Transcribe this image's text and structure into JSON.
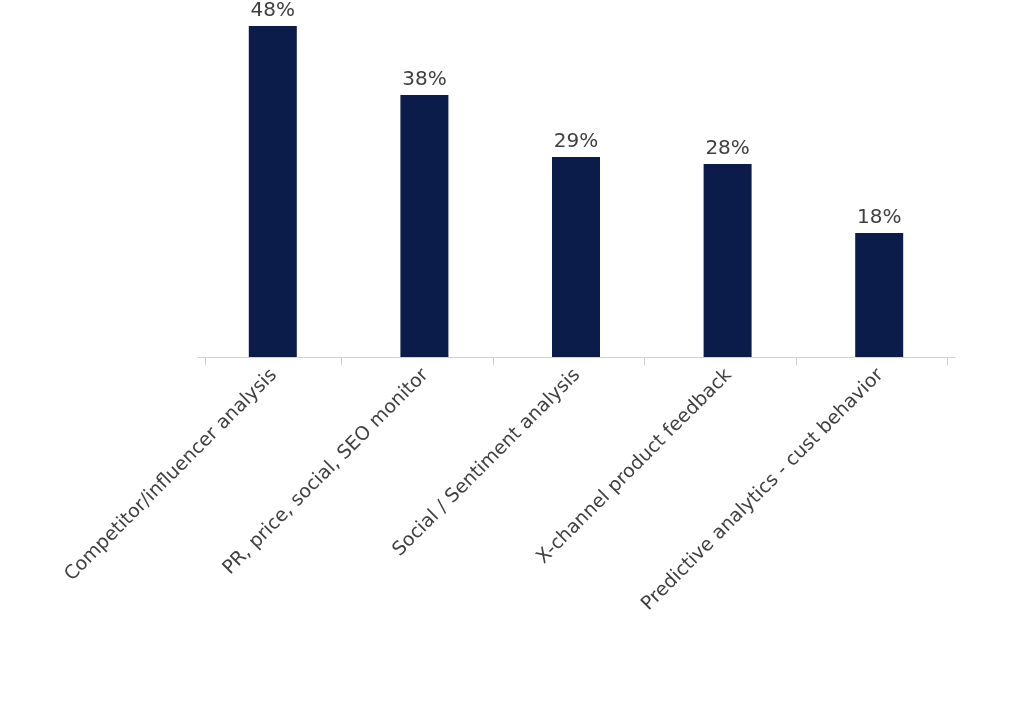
{
  "chart_data": {
    "type": "bar",
    "categories": [
      "Competitor/influencer analysis",
      "PR, price, social, SEO monitor",
      "Social  / Sentiment analysis",
      "X-channel product feedback",
      "Predictive analytics - cust behavior"
    ],
    "values": [
      48,
      38,
      29,
      28,
      18
    ],
    "value_labels": [
      "48%",
      "38%",
      "29%",
      "28%",
      "18%"
    ],
    "color": "#0c1c4a"
  }
}
